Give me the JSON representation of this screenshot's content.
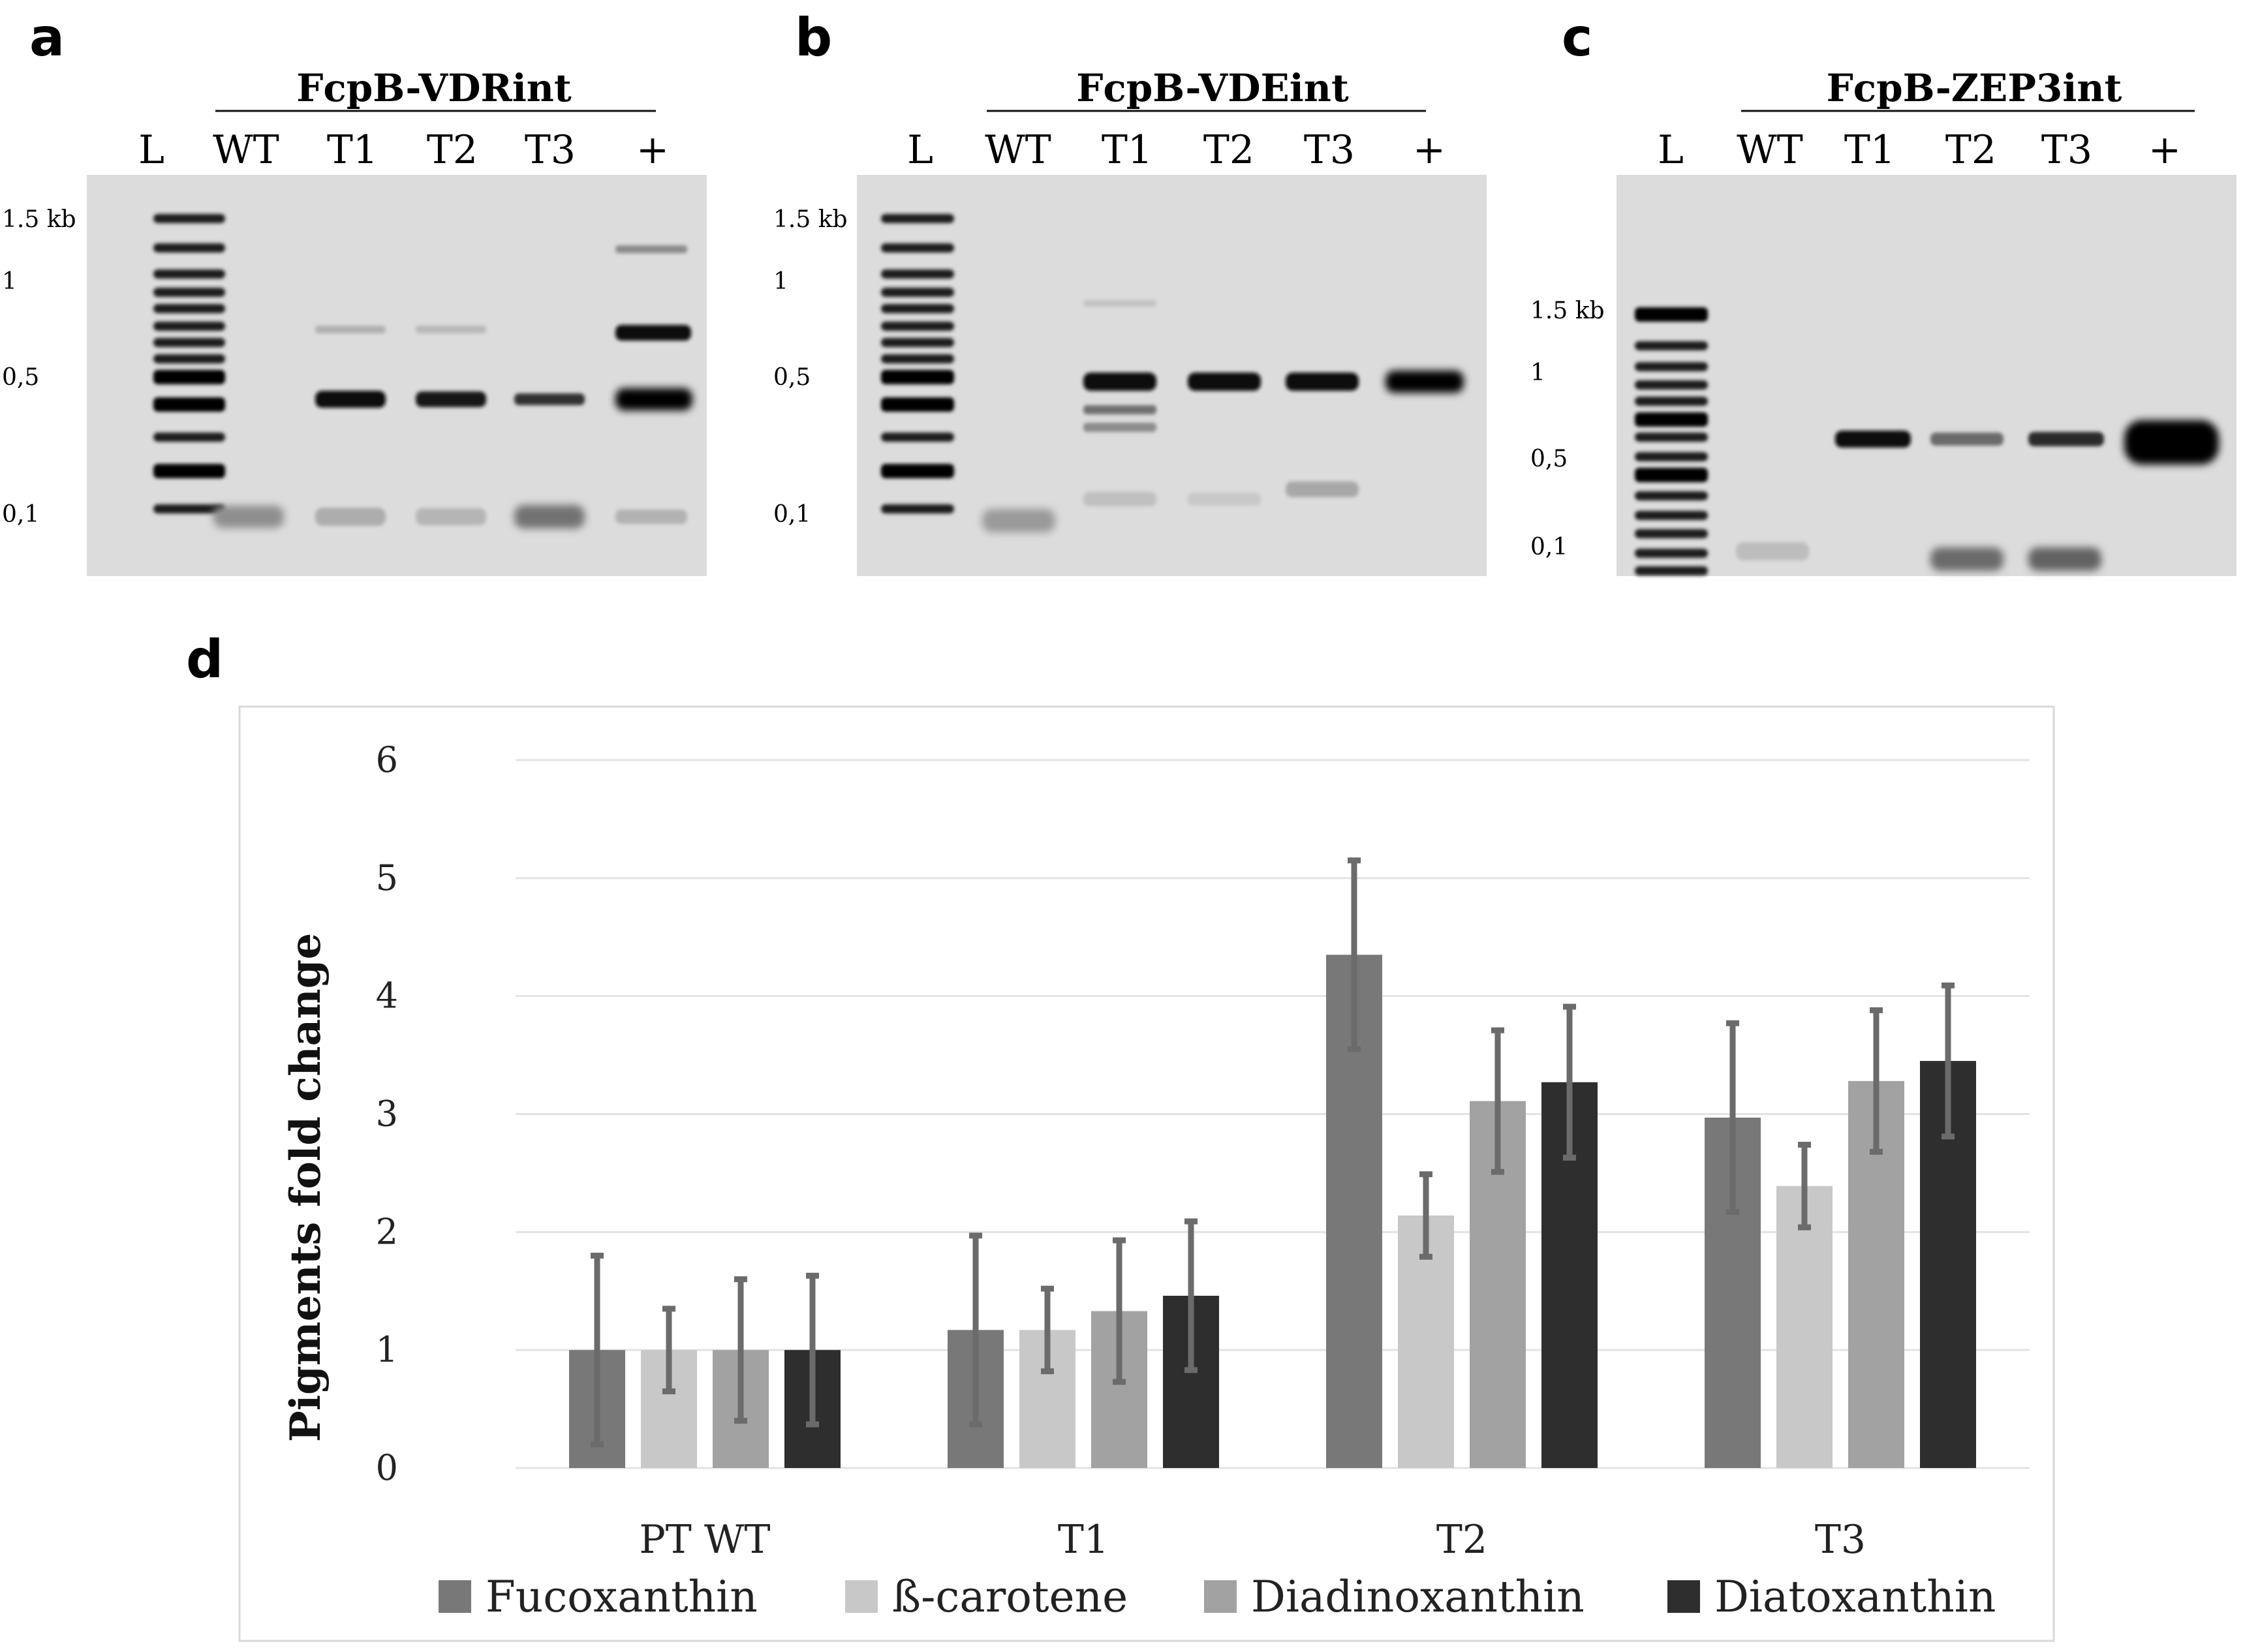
{
  "gels": [
    {
      "panel": "a",
      "construct": "FcpB-VDRint",
      "lanes": [
        "L",
        "WT",
        "T1",
        "T2",
        "T3",
        "+"
      ],
      "sizes": [
        "1.5 kb",
        "1",
        "0,5",
        "0,1"
      ]
    },
    {
      "panel": "b",
      "construct": "FcpB-VDEint",
      "lanes": [
        "L",
        "WT",
        "T1",
        "T2",
        "T3",
        "+"
      ],
      "sizes": [
        "1.5 kb",
        "1",
        "0,5",
        "0,1"
      ]
    },
    {
      "panel": "c",
      "construct": "FcpB-ZEP3int",
      "lanes": [
        "L",
        "WT",
        "T1",
        "T2",
        "T3",
        "+"
      ],
      "sizes": [
        "1.5 kb",
        "1",
        "0,5",
        "0,1"
      ]
    }
  ],
  "chart_panel": "d",
  "chart_data": {
    "type": "bar",
    "title": "",
    "xlabel": "",
    "ylabel": "Pigments fold change",
    "ylim": [
      0,
      6
    ],
    "yticks": [
      0,
      1,
      2,
      3,
      4,
      5,
      6
    ],
    "grid": true,
    "legend_position": "bottom",
    "categories": [
      "PT WT",
      "T1",
      "T2",
      "T3"
    ],
    "series": [
      {
        "name": "Fucoxanthin",
        "color": "#787878",
        "values": [
          1.0,
          1.17,
          4.35,
          2.97
        ],
        "errors": [
          0.8,
          0.8,
          0.8,
          0.8
        ]
      },
      {
        "name": "ß-carotene",
        "color": "#c8c8c8",
        "values": [
          1.0,
          1.17,
          2.14,
          2.39
        ],
        "errors": [
          0.35,
          0.35,
          0.35,
          0.35
        ]
      },
      {
        "name": "Diadinoxanthin",
        "color": "#a2a2a2",
        "values": [
          1.0,
          1.33,
          3.11,
          3.28
        ],
        "errors": [
          0.6,
          0.6,
          0.6,
          0.6
        ]
      },
      {
        "name": "Diatoxanthin",
        "color": "#2e2e2e",
        "values": [
          1.0,
          1.46,
          3.27,
          3.45
        ],
        "errors": [
          0.63,
          0.63,
          0.64,
          0.64
        ]
      }
    ]
  }
}
